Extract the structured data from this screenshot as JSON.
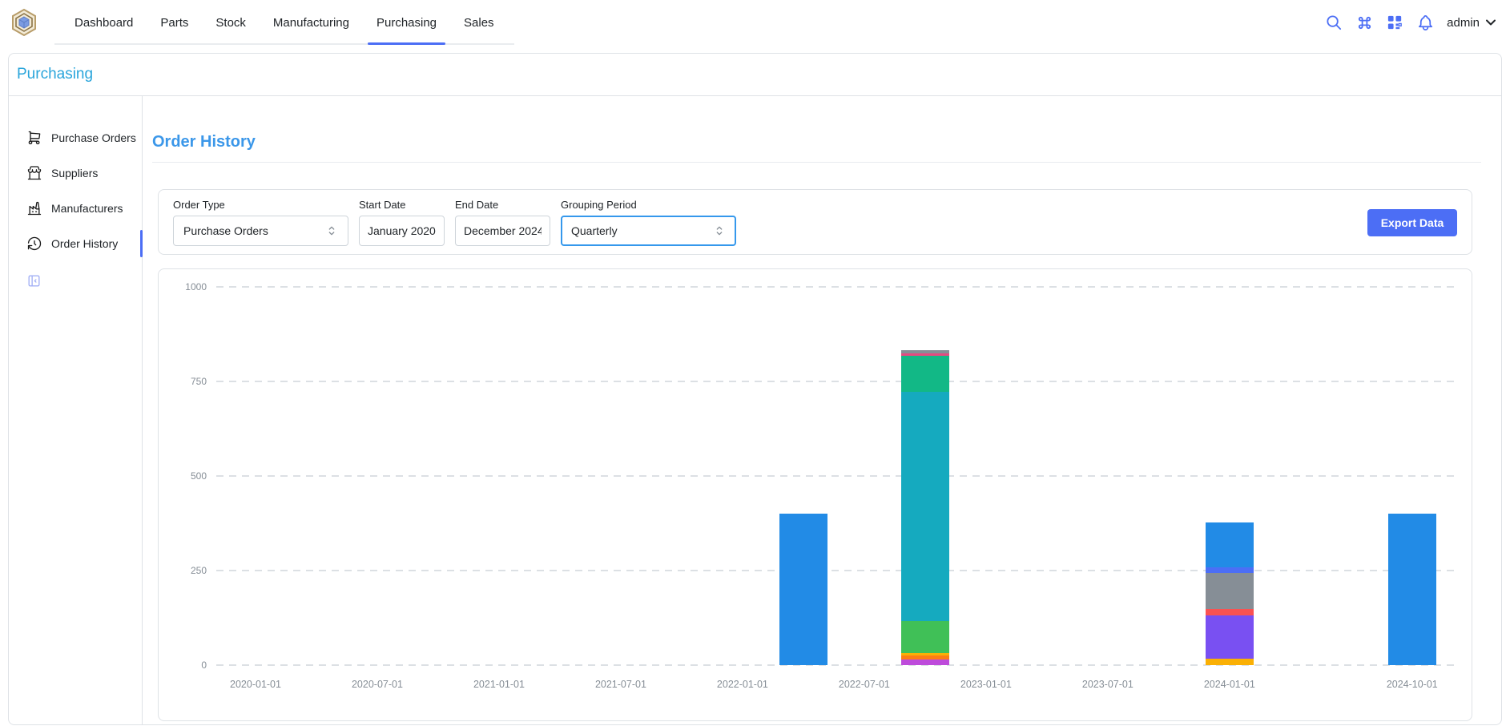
{
  "nav": {
    "tabs": [
      "Dashboard",
      "Parts",
      "Stock",
      "Manufacturing",
      "Purchasing",
      "Sales"
    ],
    "active_tab": "Purchasing",
    "user": "admin"
  },
  "header": {
    "breadcrumb": "Purchasing"
  },
  "sidebar": {
    "items": [
      {
        "label": "Purchase Orders",
        "icon": "shopping-cart"
      },
      {
        "label": "Suppliers",
        "icon": "building-store"
      },
      {
        "label": "Manufacturers",
        "icon": "factory"
      },
      {
        "label": "Order History",
        "icon": "history"
      }
    ],
    "active_item": "Order History"
  },
  "main": {
    "title": "Order History"
  },
  "filters": {
    "order_type": {
      "label": "Order Type",
      "value": "Purchase Orders"
    },
    "start_date": {
      "label": "Start Date",
      "value": "January 2020"
    },
    "end_date": {
      "label": "End Date",
      "value": "December 2024"
    },
    "grouping": {
      "label": "Grouping Period",
      "value": "Quarterly"
    },
    "export_label": "Export Data"
  },
  "colors": {
    "accent": "#4c6ef5",
    "breadcrumb_blue": "#2aa5db",
    "page_title_blue": "#3b97e9",
    "border": "#dee2e6",
    "axis_label": "#868e96"
  },
  "chart_data": {
    "type": "stacked-bar",
    "title": "",
    "grouping": "Quarterly",
    "x_axis": {
      "type": "time",
      "ticks": [
        {
          "label": "2020-01-01",
          "month": 0
        },
        {
          "label": "2020-07-01",
          "month": 6
        },
        {
          "label": "2021-01-01",
          "month": 12
        },
        {
          "label": "2021-07-01",
          "month": 18
        },
        {
          "label": "2022-01-01",
          "month": 24
        },
        {
          "label": "2022-07-01",
          "month": 30
        },
        {
          "label": "2023-01-01",
          "month": 36
        },
        {
          "label": "2023-07-01",
          "month": 42
        },
        {
          "label": "2024-01-01",
          "month": 48
        },
        {
          "label": "2024-10-01",
          "month": 57
        }
      ]
    },
    "y_axis": {
      "ticks": [
        0,
        250,
        500,
        750,
        1000
      ],
      "min": 0,
      "max": 1050,
      "grid_style": "dashed"
    },
    "bars": [
      {
        "quarter": "2022-04-01",
        "month": 27,
        "total": 400,
        "segments": [
          {
            "color": "#228be6",
            "value": 400
          }
        ]
      },
      {
        "quarter": "2022-10-01",
        "month": 33,
        "total": 832,
        "segments": [
          {
            "color": "#be4bdb",
            "value": 15
          },
          {
            "color": "#fd7e14",
            "value": 10
          },
          {
            "color": "#fab005",
            "value": 7
          },
          {
            "color": "#40c057",
            "value": 85
          },
          {
            "color": "#15aabf",
            "value": 605
          },
          {
            "color": "#12b886",
            "value": 95
          },
          {
            "color": "#e64980",
            "value": 8
          },
          {
            "color": "#868e96",
            "value": 7
          }
        ]
      },
      {
        "quarter": "2024-01-01",
        "month": 48,
        "total": 378,
        "segments": [
          {
            "color": "#fab005",
            "value": 17
          },
          {
            "color": "#7950f2",
            "value": 114
          },
          {
            "color": "#fa5252",
            "value": 17
          },
          {
            "color": "#868e96",
            "value": 95
          },
          {
            "color": "#4c6ef5",
            "value": 15
          },
          {
            "color": "#228be6",
            "value": 120
          }
        ]
      },
      {
        "quarter": "2024-10-01",
        "month": 57,
        "total": 400,
        "segments": [
          {
            "color": "#228be6",
            "value": 400
          }
        ]
      }
    ]
  }
}
